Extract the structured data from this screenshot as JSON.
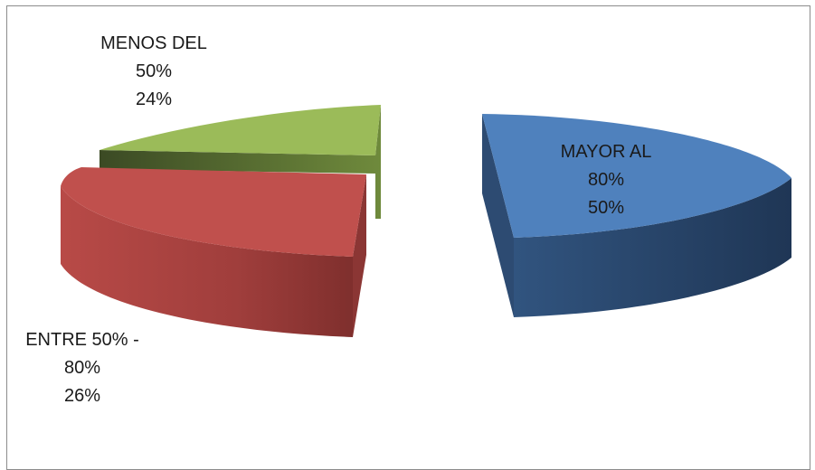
{
  "chart_data": {
    "type": "pie",
    "title": "",
    "exploded": true,
    "three_d": true,
    "slices": [
      {
        "name": "MAYOR AL 80%",
        "label_line1": "MAYOR AL",
        "label_line2": "80%",
        "value": 50,
        "value_label": "50%",
        "color": "#4f81bd"
      },
      {
        "name": "ENTRE 50% - 80%",
        "label_line1": "ENTRE 50% -",
        "label_line2": "80%",
        "value": 26,
        "value_label": "26%",
        "color": "#c0504d"
      },
      {
        "name": "MENOS DEL 50%",
        "label_line1": "MENOS DEL",
        "label_line2": "50%",
        "value": 24,
        "value_label": "24%",
        "color": "#9bbb59"
      }
    ]
  }
}
